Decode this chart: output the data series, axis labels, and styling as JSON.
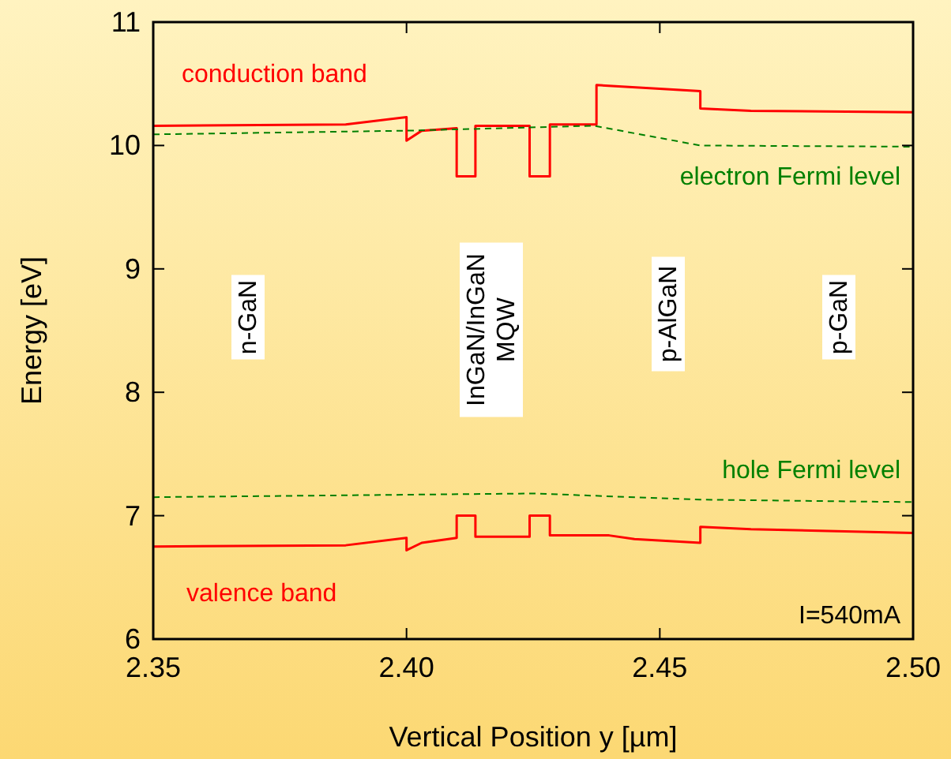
{
  "chart_data": {
    "type": "line",
    "xlabel": "Vertical Position y [µm]",
    "ylabel": "Energy [eV]",
    "xlim": [
      2.35,
      2.5
    ],
    "xticks": [
      {
        "value": 2.35,
        "label": "2.35"
      },
      {
        "value": 2.4,
        "label": "2.40"
      },
      {
        "value": 2.45,
        "label": "2.45"
      },
      {
        "value": 2.5,
        "label": "2.50"
      }
    ],
    "ylim": [
      6,
      11
    ],
    "yticks": [
      6,
      7,
      8,
      9,
      10,
      11
    ],
    "grid": false,
    "marker": "none",
    "series": [
      {
        "name": "conduction band",
        "color": "#ff0000",
        "line_style": "solid",
        "x": [
          2.35,
          2.388,
          2.4,
          2.4,
          2.403,
          2.4099,
          2.4099,
          2.4136,
          2.4136,
          2.4243,
          2.4243,
          2.4283,
          2.4283,
          2.4375,
          2.4375,
          2.458,
          2.458,
          2.468,
          2.5
        ],
        "values": [
          10.16,
          10.17,
          10.23,
          10.04,
          10.12,
          10.14,
          9.75,
          9.75,
          10.16,
          10.16,
          9.75,
          9.75,
          10.17,
          10.17,
          10.49,
          10.44,
          10.3,
          10.28,
          10.27
        ]
      },
      {
        "name": "electron Fermi level",
        "color": "#008000",
        "line_style": "dashed",
        "x": [
          2.35,
          2.4,
          2.437,
          2.458,
          2.5
        ],
        "values": [
          10.09,
          10.12,
          10.16,
          10.0,
          9.99
        ]
      },
      {
        "name": "valence band",
        "color": "#ff0000",
        "line_style": "solid",
        "x": [
          2.35,
          2.388,
          2.4,
          2.4,
          2.403,
          2.4099,
          2.4099,
          2.4136,
          2.4136,
          2.4243,
          2.4243,
          2.4283,
          2.4283,
          2.44,
          2.445,
          2.458,
          2.458,
          2.468,
          2.5
        ],
        "values": [
          6.75,
          6.76,
          6.82,
          6.72,
          6.78,
          6.82,
          7.0,
          7.0,
          6.83,
          6.83,
          7.0,
          7.0,
          6.84,
          6.84,
          6.81,
          6.78,
          6.91,
          6.89,
          6.86
        ]
      },
      {
        "name": "hole Fermi level",
        "color": "#008000",
        "line_style": "dashed",
        "x": [
          2.35,
          2.425,
          2.458,
          2.5
        ],
        "values": [
          7.15,
          7.18,
          7.13,
          7.11
        ]
      }
    ],
    "annotations": [
      "n-GaN",
      "InGaN/InGaN\nMQW",
      "p-AlGaN",
      "p-GaN",
      "I=540mA"
    ]
  }
}
